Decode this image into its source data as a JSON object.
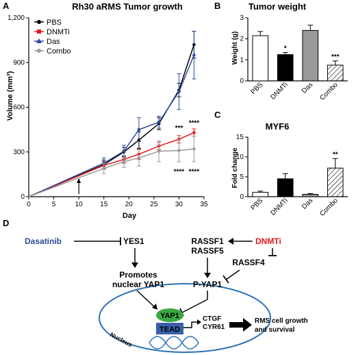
{
  "panels": {
    "A": "A",
    "B": "B",
    "C": "C",
    "D": "D"
  },
  "chart_data": [
    {
      "type": "line",
      "title": "Rh30 aRMS Tumor growth",
      "xlabel": "Day",
      "ylabel": "Volume (mm³)",
      "xlim": [
        0,
        35
      ],
      "ylim": [
        0,
        1200
      ],
      "xticks": [
        "0",
        "5",
        "10",
        "15",
        "20",
        "25",
        "30",
        "35"
      ],
      "yticks": [
        "0",
        "300",
        "600",
        "900",
        "1,200"
      ],
      "legend_position": "top-left",
      "x": [
        0,
        15,
        19,
        22,
        26,
        30,
        33
      ],
      "series": [
        {
          "name": "PBS",
          "color": "#000000",
          "values": [
            0,
            215,
            300,
            380,
            490,
            715,
            1020
          ],
          "errors": [
            0,
            30,
            30,
            55,
            40,
            45,
            90
          ]
        },
        {
          "name": "DNMTi",
          "color": "#e31a1c",
          "values": [
            0,
            210,
            250,
            285,
            340,
            385,
            430
          ],
          "errors": [
            0,
            25,
            25,
            35,
            25,
            25,
            25
          ]
        },
        {
          "name": "Das",
          "color": "#2c4a9a",
          "values": [
            0,
            225,
            305,
            450,
            500,
            705,
            950
          ],
          "errors": [
            0,
            35,
            40,
            80,
            40,
            120,
            160
          ]
        },
        {
          "name": "Combo",
          "color": "#9a9a9a",
          "values": [
            0,
            190,
            235,
            260,
            305,
            310,
            320
          ],
          "errors": [
            0,
            35,
            40,
            55,
            70,
            75,
            85
          ]
        }
      ],
      "arrow_at_day": 10,
      "annotations": [
        {
          "text": "****",
          "x": 33,
          "y": 480
        },
        {
          "text": "***",
          "x": 30,
          "y": 445
        },
        {
          "text": "****",
          "x": 30,
          "y": 155
        },
        {
          "text": "****",
          "x": 33,
          "y": 155
        }
      ]
    },
    {
      "type": "bar",
      "title": "Tumor weight",
      "ylabel": "Weight (g)",
      "ylim": [
        0,
        3
      ],
      "yticks": [
        "0",
        "1",
        "2",
        "3"
      ],
      "categories": [
        "PBS",
        "DNMTi",
        "Das",
        "Combo"
      ],
      "values": [
        2.15,
        1.25,
        2.4,
        0.75
      ],
      "errors": [
        0.2,
        0.1,
        0.25,
        0.2
      ],
      "significance": [
        "",
        "*",
        "",
        "***"
      ]
    },
    {
      "type": "bar",
      "title": "MYF6",
      "ylabel": "Fold change",
      "ylim": [
        0,
        15
      ],
      "yticks": [
        "0",
        "5",
        "10",
        "15"
      ],
      "categories": [
        "PBS",
        "DNMTi",
        "Das",
        "Combo"
      ],
      "values": [
        1.1,
        4.5,
        0.6,
        7.2
      ],
      "errors": [
        0.3,
        1.3,
        0.2,
        2.4
      ],
      "significance": [
        "",
        "",
        "",
        "**"
      ]
    }
  ],
  "diagram": {
    "dasatinib": "Dasatinib",
    "yes1": "YES1",
    "promotes": "Promotes",
    "nuclear_yap1": "nuclear YAP1",
    "rassf1": "RASSF1",
    "rassf5": "RASSF5",
    "dnmti": "DNMTi",
    "rassf4": "RASSF4",
    "pyap1": "P-YAP1",
    "yap1": "YAP1",
    "tead": "TEAD",
    "ctgf": "CTGF",
    "cyr61": "CYR61",
    "rms1": "RMS cell growth",
    "rms2": "and survival",
    "nucleus": "Nucleus"
  },
  "colors": {
    "dasatinib": "#2c4a9a",
    "dnmti": "#e31a1c",
    "yap1_fill": "#3aa843",
    "tead_fill": "#3a5fa8",
    "nucleus_stroke": "#2a72b8"
  }
}
